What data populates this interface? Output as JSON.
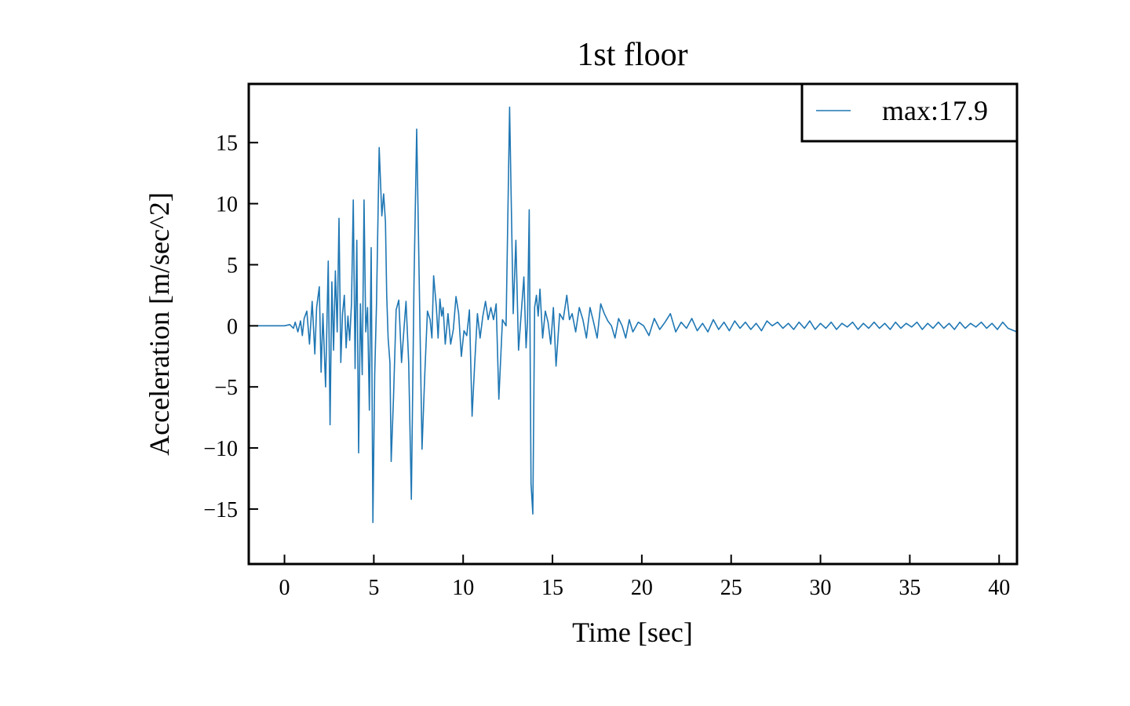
{
  "chart_data": {
    "type": "line",
    "title": "1st floor",
    "xlabel": "Time [sec]",
    "ylabel": "Acceleration [m/sec^2]",
    "xlim": [
      -2,
      41
    ],
    "ylim": [
      -19.5,
      19.8
    ],
    "xticks": [
      0,
      5,
      10,
      15,
      20,
      25,
      30,
      35,
      40
    ],
    "xtick_labels": [
      "0",
      "5",
      "10",
      "15",
      "20",
      "25",
      "30",
      "35",
      "40"
    ],
    "yticks": [
      -15,
      -10,
      -5,
      0,
      5,
      10,
      15
    ],
    "ytick_labels": [
      "−15",
      "−10",
      "−5",
      "0",
      "5",
      "10",
      "15"
    ],
    "grid": false,
    "legend": {
      "position": "top-right",
      "entries": [
        "max:17.9"
      ]
    },
    "series": [
      {
        "name": "max:17.9",
        "color": "#1f77b4",
        "x": [
          -2.0,
          0.0,
          0.3,
          0.5,
          0.6,
          0.75,
          0.9,
          1.0,
          1.1,
          1.25,
          1.4,
          1.55,
          1.7,
          1.8,
          1.95,
          2.05,
          2.15,
          2.3,
          2.45,
          2.55,
          2.65,
          2.75,
          2.85,
          2.95,
          3.05,
          3.15,
          3.25,
          3.35,
          3.45,
          3.55,
          3.65,
          3.75,
          3.85,
          3.95,
          4.05,
          4.15,
          4.25,
          4.35,
          4.45,
          4.55,
          4.65,
          4.75,
          4.85,
          4.95,
          5.05,
          5.15,
          5.3,
          5.45,
          5.55,
          5.65,
          5.72,
          5.8,
          5.9,
          5.97,
          6.1,
          6.25,
          6.4,
          6.55,
          6.7,
          6.8,
          6.95,
          7.1,
          7.25,
          7.4,
          7.55,
          7.7,
          7.85,
          8.0,
          8.15,
          8.25,
          8.35,
          8.5,
          8.6,
          8.7,
          8.8,
          8.88,
          9.0,
          9.15,
          9.3,
          9.45,
          9.6,
          9.75,
          9.9,
          10.05,
          10.2,
          10.35,
          10.5,
          10.65,
          10.8,
          10.95,
          11.1,
          11.25,
          11.4,
          11.55,
          11.7,
          11.85,
          12.0,
          12.2,
          12.4,
          12.6,
          12.8,
          12.95,
          13.1,
          13.25,
          13.4,
          13.52,
          13.6,
          13.7,
          13.8,
          13.9,
          14.0,
          14.1,
          14.2,
          14.3,
          14.45,
          14.6,
          14.75,
          14.9,
          15.05,
          15.2,
          15.4,
          15.6,
          15.8,
          15.95,
          16.1,
          16.3,
          16.5,
          16.7,
          16.9,
          17.1,
          17.3,
          17.5,
          17.7,
          17.9,
          18.1,
          18.3,
          18.5,
          18.7,
          18.9,
          19.1,
          19.3,
          19.5,
          19.8,
          20.1,
          20.4,
          20.7,
          21.0,
          21.3,
          21.6,
          21.9,
          22.2,
          22.5,
          22.8,
          23.1,
          23.4,
          23.7,
          24.0,
          24.3,
          24.6,
          24.9,
          25.2,
          25.5,
          25.8,
          26.1,
          26.4,
          26.7,
          27.0,
          27.3,
          27.6,
          27.9,
          28.2,
          28.5,
          28.8,
          29.1,
          29.4,
          29.7,
          30.0,
          30.3,
          30.6,
          30.9,
          31.2,
          31.5,
          31.8,
          32.1,
          32.4,
          32.7,
          33.0,
          33.3,
          33.6,
          33.9,
          34.2,
          34.5,
          34.8,
          35.1,
          35.4,
          35.7,
          36.0,
          36.3,
          36.6,
          36.9,
          37.2,
          37.5,
          37.8,
          38.1,
          38.4,
          38.7,
          39.0,
          39.3,
          39.6,
          39.9,
          40.2,
          40.5,
          41.0
        ],
        "y": [
          0.0,
          0.0,
          0.1,
          -0.2,
          0.3,
          -0.5,
          0.4,
          -0.8,
          0.6,
          1.2,
          -1.5,
          2.0,
          -2.3,
          1.5,
          3.2,
          -3.8,
          1.0,
          -5.0,
          5.3,
          -8.1,
          3.6,
          -2.0,
          4.5,
          -0.5,
          8.8,
          -3.0,
          1.0,
          2.5,
          -1.8,
          0.8,
          -1.2,
          1.8,
          10.3,
          -3.5,
          7.0,
          -10.4,
          1.8,
          -4.0,
          10.3,
          -0.5,
          1.5,
          -6.9,
          6.4,
          -16.1,
          -4.0,
          1.8,
          14.6,
          9.0,
          10.8,
          8.5,
          2.5,
          -1.0,
          -3.0,
          -11.1,
          -6.0,
          1.3,
          2.1,
          -3.0,
          0.0,
          2.0,
          -3.0,
          -14.2,
          3.6,
          16.1,
          3.0,
          -10.1,
          -4.0,
          1.2,
          0.5,
          -1.0,
          4.1,
          1.5,
          -1.0,
          2.2,
          0.8,
          1.5,
          -1.5,
          1.0,
          -1.5,
          -0.3,
          2.4,
          1.0,
          -2.5,
          -0.4,
          -0.8,
          1.3,
          -7.4,
          -3.0,
          1.0,
          -1.0,
          0.8,
          2.0,
          0.5,
          1.5,
          0.5,
          1.8,
          -6.0,
          0.5,
          0.0,
          17.9,
          1.0,
          7.0,
          -2.0,
          1.0,
          4.0,
          -1.8,
          0.3,
          9.5,
          -12.9,
          -15.4,
          1.5,
          2.5,
          0.8,
          3.0,
          -1.0,
          1.2,
          0.3,
          -1.5,
          1.5,
          -3.3,
          1.0,
          0.5,
          2.5,
          0.5,
          1.0,
          -0.5,
          1.5,
          0.5,
          -1.0,
          1.5,
          0.3,
          -1.0,
          1.8,
          1.0,
          0.4,
          0.0,
          -1.0,
          0.6,
          0.0,
          -1.0,
          0.5,
          -0.5,
          0.3,
          0.0,
          -0.8,
          0.6,
          -0.3,
          0.3,
          1.0,
          -0.5,
          0.3,
          -0.2,
          0.6,
          -0.4,
          0.2,
          -0.5,
          0.5,
          -0.3,
          0.3,
          -0.4,
          0.4,
          -0.2,
          0.3,
          -0.3,
          0.2,
          -0.4,
          0.4,
          0.0,
          0.3,
          -0.2,
          0.2,
          -0.3,
          0.3,
          -0.2,
          0.4,
          -0.3,
          0.2,
          -0.2,
          0.3,
          -0.3,
          0.2,
          -0.1,
          0.3,
          -0.3,
          0.2,
          -0.2,
          0.3,
          -0.2,
          0.2,
          -0.3,
          0.3,
          -0.2,
          0.2,
          -0.1,
          0.3,
          -0.3,
          0.2,
          -0.2,
          0.3,
          -0.2,
          0.2,
          -0.3,
          0.3,
          -0.2,
          0.2,
          -0.1,
          0.3,
          -0.2,
          0.2,
          -0.3,
          0.3,
          -0.2,
          -0.5
        ]
      }
    ]
  }
}
